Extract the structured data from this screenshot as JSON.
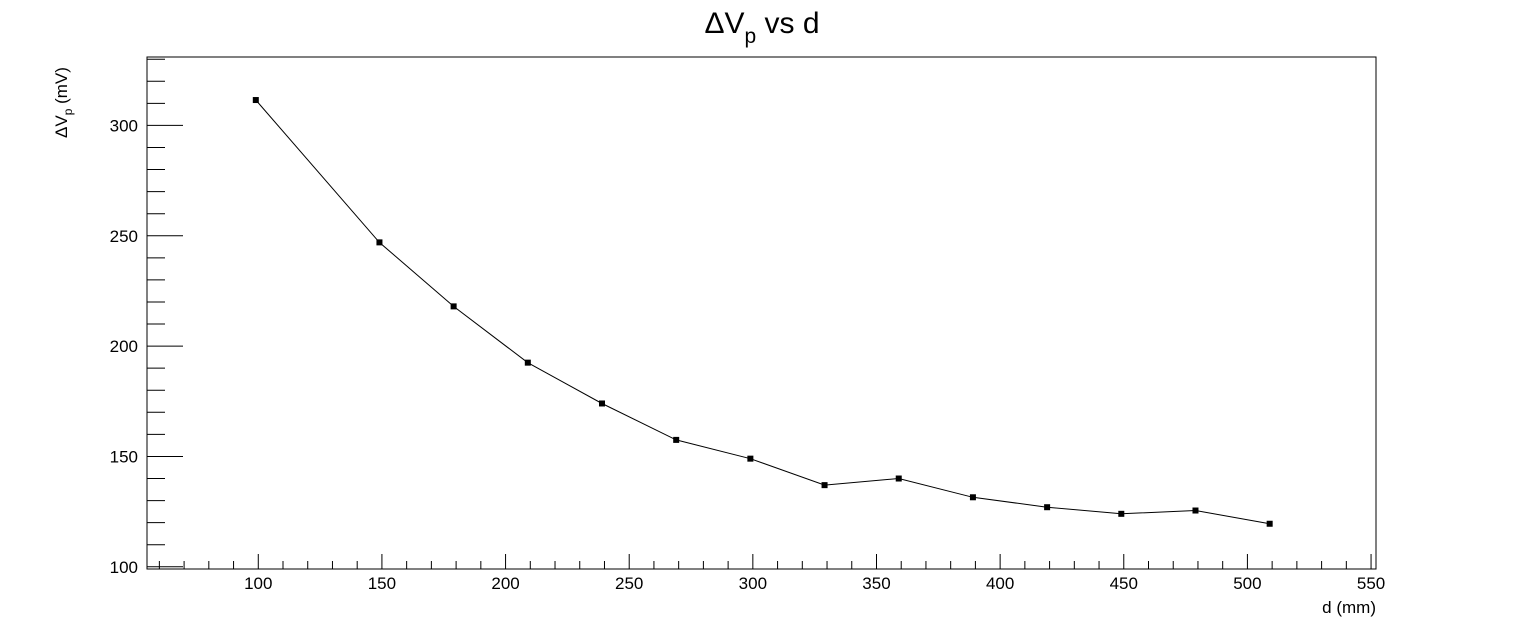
{
  "chart_data": {
    "type": "line",
    "title": {
      "main": "ΔV",
      "sub": "p",
      "rest": " vs d"
    },
    "xlabel": "d (mm)",
    "ylabel": {
      "main": "ΔV",
      "sub": "p",
      "rest": " (mV)"
    },
    "xlim": [
      55,
      552
    ],
    "ylim": [
      99,
      331
    ],
    "x_ticks": [
      100,
      150,
      200,
      250,
      300,
      350,
      400,
      450,
      500,
      550
    ],
    "y_ticks": [
      100,
      150,
      200,
      250,
      300
    ],
    "grid": false,
    "legend": "none",
    "series": [
      {
        "x": [
          99,
          149,
          179,
          209,
          239,
          269,
          299,
          329,
          359,
          389,
          419,
          449,
          479,
          509
        ],
        "y": [
          311.5,
          247,
          218,
          192.5,
          174,
          157.5,
          149,
          137,
          140,
          131.5,
          127,
          124,
          125.5,
          119.5
        ]
      }
    ]
  }
}
